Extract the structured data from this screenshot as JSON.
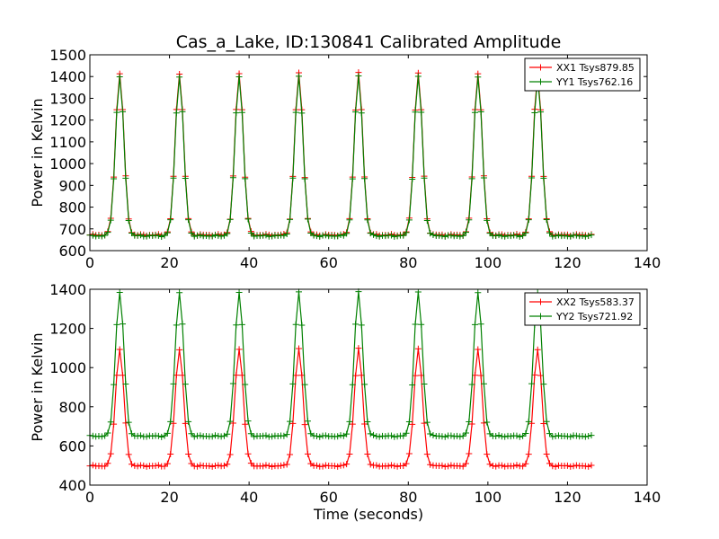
{
  "chart_data": [
    {
      "type": "line",
      "title": "Cas_a_Lake, ID:130841 Calibrated Amplitude",
      "xlabel": "",
      "ylabel": "Power in Kelvin",
      "xlim": [
        0,
        140
      ],
      "ylim": [
        600,
        1500
      ],
      "xticks": [
        0,
        20,
        40,
        60,
        80,
        100,
        120,
        140
      ],
      "yticks": [
        600,
        700,
        800,
        900,
        1000,
        1100,
        1200,
        1300,
        1400,
        1500
      ],
      "legend_position": "top-right",
      "grid": false,
      "marker": "+",
      "peak_times": [
        7.5,
        22.5,
        37.5,
        52.5,
        67.5,
        82.5,
        97.5,
        112.5
      ],
      "x_end": 126,
      "sample_step": 0.75,
      "series": [
        {
          "name": "XX1 Tsys879.85",
          "color": "#ff0000",
          "baseline": 672,
          "peak": 1415
        },
        {
          "name": "YY1 Tsys762.16",
          "color": "#008000",
          "baseline": 668,
          "peak": 1400
        }
      ]
    },
    {
      "type": "line",
      "title": "",
      "xlabel": "Time (seconds)",
      "ylabel": "Power in Kelvin",
      "xlim": [
        0,
        140
      ],
      "ylim": [
        400,
        1400
      ],
      "xticks": [
        0,
        20,
        40,
        60,
        80,
        100,
        120,
        140
      ],
      "yticks": [
        400,
        600,
        800,
        1000,
        1200,
        1400
      ],
      "legend_position": "top-right",
      "grid": false,
      "marker": "+",
      "peak_times": [
        7.5,
        22.5,
        37.5,
        52.5,
        67.5,
        82.5,
        97.5,
        112.5
      ],
      "x_end": 126,
      "sample_step": 0.75,
      "series": [
        {
          "name": "XX2 Tsys583.37",
          "color": "#ff0000",
          "baseline": 498,
          "peak": 1095
        },
        {
          "name": "YY2 Tsys721.92",
          "color": "#008000",
          "baseline": 650,
          "peak": 1385
        }
      ]
    }
  ]
}
